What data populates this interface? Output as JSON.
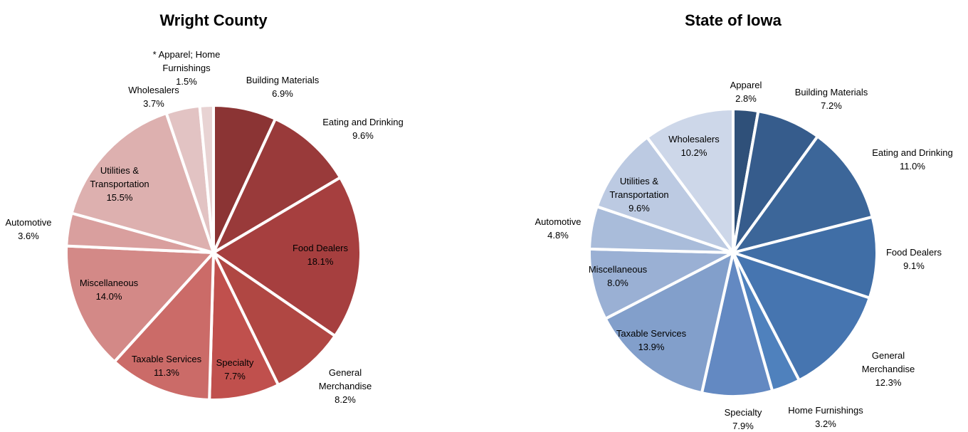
{
  "chart_data": [
    {
      "type": "pie",
      "title": "Wright County",
      "categories": [
        "Building Materials",
        "Eating and Drinking",
        "Food Dealers",
        "General Merchandise",
        "Specialty",
        "Taxable Services",
        "Miscellaneous",
        "Automotive",
        "Utilities & Transportation",
        "Wholesalers",
        "* Apparel; Home Furnishings"
      ],
      "values": [
        6.9,
        9.6,
        18.1,
        8.2,
        7.7,
        11.3,
        14.0,
        3.6,
        15.5,
        3.7,
        1.5
      ],
      "value_labels": [
        "6.9%",
        "9.6%",
        "18.1%",
        "8.2%",
        "7.7%",
        "11.3%",
        "14.0%",
        "3.6%",
        "15.5%",
        "3.7%",
        "1.5%"
      ],
      "colors": [
        "#8b3434",
        "#993a3a",
        "#a63f3f",
        "#b04743",
        "#c0504d",
        "#cb6b68",
        "#d38987",
        "#d99f9e",
        "#ddb0af",
        "#e2c3c3",
        "#e8d3d3"
      ]
    },
    {
      "type": "pie",
      "title": "State of Iowa",
      "categories": [
        "Apparel",
        "Building Materials",
        "Eating and Drinking",
        "Food Dealers",
        "General Merchandise",
        "Home Furnishings",
        "Specialty",
        "Taxable Services",
        "Miscellaneous",
        "Automotive",
        "Utilities & Transportation",
        "Wholesalers"
      ],
      "values": [
        2.8,
        7.2,
        11.0,
        9.1,
        12.3,
        3.2,
        7.9,
        13.9,
        8.0,
        4.8,
        9.6,
        10.2
      ],
      "value_labels": [
        "2.8%",
        "7.2%",
        "11.0%",
        "9.1%",
        "12.3%",
        "3.2%",
        "7.9%",
        "13.9%",
        "8.0%",
        "4.8%",
        "9.6%",
        "10.2%"
      ],
      "colors": [
        "#2f5079",
        "#365c8c",
        "#3c6699",
        "#406ea6",
        "#4675b0",
        "#4f81bd",
        "#6389c2",
        "#829fcb",
        "#9ab0d4",
        "#a9bcda",
        "#bccae2",
        "#cdd7e9"
      ]
    }
  ]
}
